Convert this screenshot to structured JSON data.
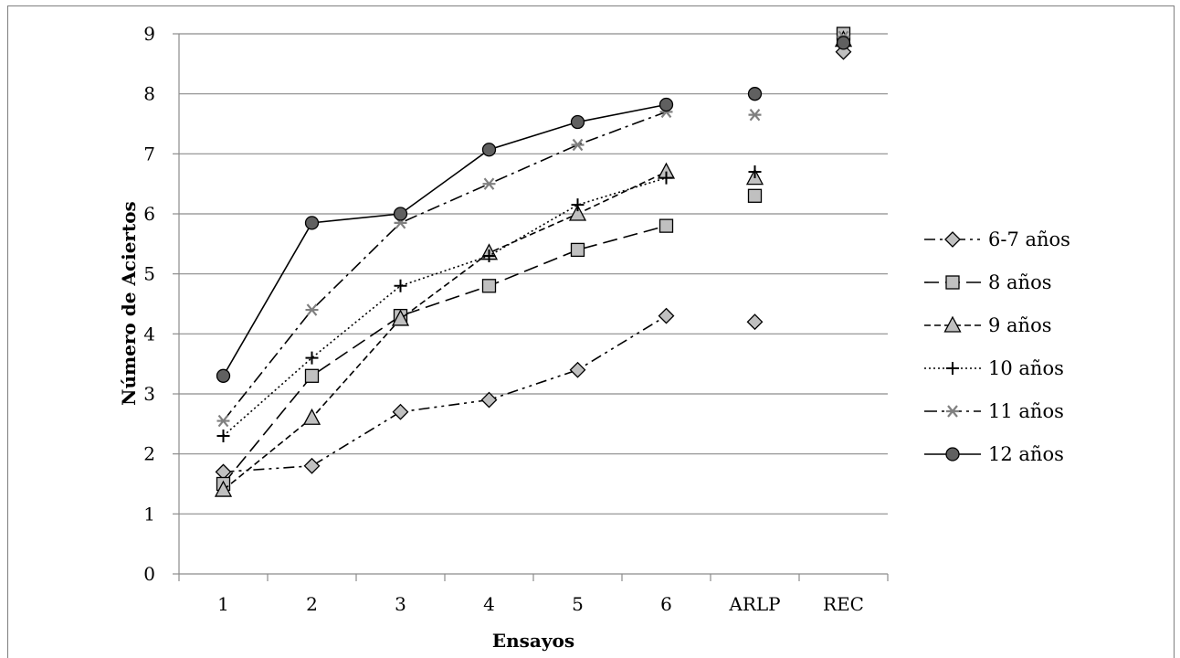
{
  "chart_data": {
    "type": "line",
    "categories": [
      "1",
      "2",
      "3",
      "4",
      "5",
      "6",
      "ARLP",
      "REC"
    ],
    "xlabel": "Ensayos",
    "ylabel": "Número de Aciertos",
    "ylim": [
      0,
      9
    ],
    "yticks": [
      "0",
      "1",
      "2",
      "3",
      "4",
      "5",
      "6",
      "7",
      "8",
      "9"
    ],
    "grid": "horizontal",
    "legend_position": "right",
    "connected_points": 6,
    "series": [
      {
        "name": "6-7 años",
        "marker": "diamond",
        "dash": "dash-dot-dot",
        "fill": "#c0c0c0",
        "values": [
          1.7,
          1.8,
          2.7,
          2.9,
          3.4,
          4.3,
          4.2,
          8.7
        ]
      },
      {
        "name": "8 años",
        "marker": "square",
        "dash": "long-dash",
        "fill": "#c0c0c0",
        "values": [
          1.5,
          3.3,
          4.3,
          4.8,
          5.4,
          5.8,
          6.3,
          9.0
        ]
      },
      {
        "name": "9 años",
        "marker": "triangle",
        "dash": "dash",
        "fill": "#c0c0c0",
        "values": [
          1.4,
          2.6,
          4.25,
          5.35,
          6.0,
          6.7,
          6.6,
          8.9
        ]
      },
      {
        "name": "10 años",
        "marker": "plus",
        "dash": "dotted",
        "fill": "#000000",
        "values": [
          2.3,
          3.6,
          4.8,
          5.3,
          6.15,
          6.6,
          6.7,
          8.85
        ]
      },
      {
        "name": "11 años",
        "marker": "star",
        "dash": "dash-dot",
        "fill": "#808080",
        "values": [
          2.55,
          4.4,
          5.85,
          6.5,
          7.15,
          7.7,
          7.65,
          8.95
        ]
      },
      {
        "name": "12 años",
        "marker": "circle",
        "dash": "solid",
        "fill": "#606060",
        "values": [
          3.3,
          5.85,
          6.0,
          7.07,
          7.53,
          7.82,
          8.0,
          8.85
        ]
      }
    ]
  }
}
